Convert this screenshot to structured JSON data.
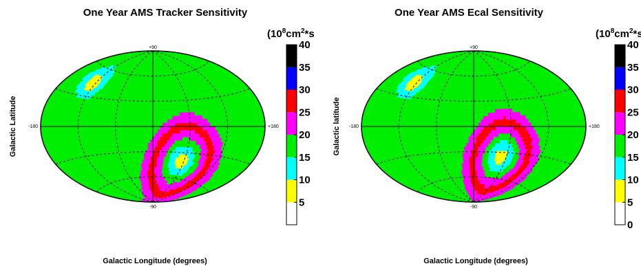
{
  "chart_data": [
    {
      "type": "heatmap",
      "projection": "aitoff",
      "title": "One Year AMS Tracker Sensitivity",
      "xlabel": "Galactic Longitude (degrees)",
      "ylabel": "Galactic Latitude",
      "xlim": [
        -180,
        180
      ],
      "ylim": [
        -90,
        90
      ],
      "map_labels": {
        "top": "+90",
        "bottom": "-90",
        "left": "-180",
        "right": "+180"
      },
      "colorbar": {
        "units": "(10^8cm^2*s",
        "units_base": "(10",
        "units_exp": "8",
        "units_mid": "cm",
        "units_exp2": "2",
        "units_tail": "*s",
        "ticks": [
          "5",
          "10",
          "15",
          "20",
          "25",
          "30",
          "35",
          "40"
        ],
        "tick_values": [
          5,
          10,
          15,
          20,
          25,
          30,
          35,
          40
        ],
        "range": [
          0,
          40
        ],
        "colors": [
          "#ffffff",
          "#ffff00",
          "#00ffff",
          "#00ee00",
          "#ff00ff",
          "#ff0000",
          "#0000ff",
          "#000000"
        ]
      },
      "hotspots": [
        {
          "l": -125,
          "b": 45,
          "peak_value": 5
        },
        {
          "l": 55,
          "b": -40,
          "peak_value": 5
        }
      ],
      "background_value": 17.5
    },
    {
      "type": "heatmap",
      "projection": "aitoff",
      "title": "One Year AMS Ecal Sensitivity",
      "xlabel": "Galactic Longitude (degrees)",
      "ylabel": "Galactic latitude",
      "xlim": [
        -180,
        180
      ],
      "ylim": [
        -90,
        90
      ],
      "map_labels": {
        "top": "+90",
        "bottom": "-90",
        "left": "-180",
        "right": "+180"
      },
      "colorbar": {
        "units": "(10^8cm^2*s",
        "units_base": "(10",
        "units_exp": "8",
        "units_mid": "cm",
        "units_exp2": "2",
        "units_tail": "*s",
        "ticks": [
          "0",
          "5",
          "10",
          "15",
          "20",
          "25",
          "30",
          "35",
          "40"
        ],
        "tick_values": [
          0,
          5,
          10,
          15,
          20,
          25,
          30,
          35,
          40
        ],
        "range": [
          0,
          40
        ],
        "colors": [
          "#ffffff",
          "#ffff00",
          "#00ffff",
          "#00ee00",
          "#ff00ff",
          "#ff0000",
          "#0000ff",
          "#000000"
        ]
      },
      "hotspots": [
        {
          "l": -125,
          "b": 45,
          "peak_value": 5
        },
        {
          "l": 50,
          "b": -35,
          "peak_value": 5
        }
      ],
      "background_value": 17.5
    }
  ]
}
